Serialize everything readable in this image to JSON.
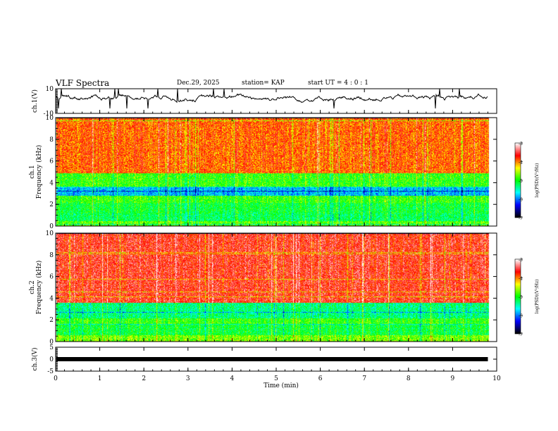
{
  "header": {
    "title": "VLF Spectra",
    "date": "Dec.29, 2025",
    "station": "station= KAP",
    "start_ut": "start  UT  =   4 : 0  : 1"
  },
  "chart_data": [
    {
      "type": "line",
      "name": "ch1-waveform",
      "ylabel": "ch.1(V)",
      "ylim": [
        -10,
        10
      ],
      "yticks": [
        "10",
        "-10"
      ],
      "xlim": [
        0,
        10
      ],
      "duration_min": 9.8,
      "mean_level": 3,
      "color": "#000000"
    },
    {
      "type": "heatmap",
      "name": "ch1-spectrogram",
      "ylabel_top": "ch.1",
      "ylabel": "Frequency (kHz)",
      "ylim": [
        0,
        10
      ],
      "yticks": [
        "0",
        "2",
        "4",
        "6",
        "8",
        "10"
      ],
      "xlim": [
        0,
        10
      ],
      "duration_min": 9.8,
      "bands": [
        {
          "from_khz": 0.0,
          "to_khz": 0.5,
          "level": -4.8
        },
        {
          "from_khz": 0.5,
          "to_khz": 1.2,
          "level": -5.2
        },
        {
          "from_khz": 1.2,
          "to_khz": 2.2,
          "level": -5.1
        },
        {
          "from_khz": 2.2,
          "to_khz": 2.8,
          "level": -4.9
        },
        {
          "from_khz": 2.8,
          "to_khz": 3.6,
          "level": -5.8
        },
        {
          "from_khz": 3.6,
          "to_khz": 4.9,
          "level": -4.9
        },
        {
          "from_khz": 4.9,
          "to_khz": 10.0,
          "level": -3.9
        }
      ],
      "colorbar": {
        "label": "log(PSD)(V²/Hz)",
        "range": [
          -7,
          -3
        ],
        "ticks": [
          "-3",
          "-4",
          "-5",
          "-6",
          "-7"
        ]
      }
    },
    {
      "type": "heatmap",
      "name": "ch2-spectrogram",
      "ylabel_top": "ch.2",
      "ylabel": "Frequency (kHz)",
      "ylim": [
        0,
        10
      ],
      "yticks": [
        "0",
        "2",
        "4",
        "6",
        "8",
        "10"
      ],
      "xlim": [
        0,
        10
      ],
      "duration_min": 9.8,
      "bands": [
        {
          "from_khz": 0.0,
          "to_khz": 0.6,
          "level": -4.7
        },
        {
          "from_khz": 0.6,
          "to_khz": 1.6,
          "level": -5.1
        },
        {
          "from_khz": 1.6,
          "to_khz": 2.2,
          "level": -4.9
        },
        {
          "from_khz": 2.2,
          "to_khz": 3.6,
          "level": -5.3
        },
        {
          "from_khz": 3.6,
          "to_khz": 10.0,
          "level": -3.6
        }
      ],
      "colorbar": {
        "label": "log(PSD)(V²/Hz)",
        "range": [
          -7,
          -3
        ],
        "ticks": [
          "-3",
          "-4",
          "-5",
          "-6",
          "-7"
        ]
      }
    },
    {
      "type": "line",
      "name": "ch3-waveform",
      "ylabel": "ch.3(V)",
      "ylim": [
        -5,
        5
      ],
      "yticks": [
        "5",
        "0",
        "-5"
      ],
      "xlim": [
        0,
        10
      ],
      "duration_min": 9.8,
      "mean_level": 0,
      "color": "#000000"
    }
  ],
  "xaxis": {
    "label": "Time (min)",
    "ticks": [
      "0",
      "1",
      "2",
      "3",
      "4",
      "5",
      "6",
      "7",
      "8",
      "9",
      "10"
    ]
  },
  "colors": {
    "colormap": [
      "#000000",
      "#0000ff",
      "#00ffff",
      "#00ff00",
      "#ffff00",
      "#ff0000",
      "#ffffff"
    ]
  }
}
